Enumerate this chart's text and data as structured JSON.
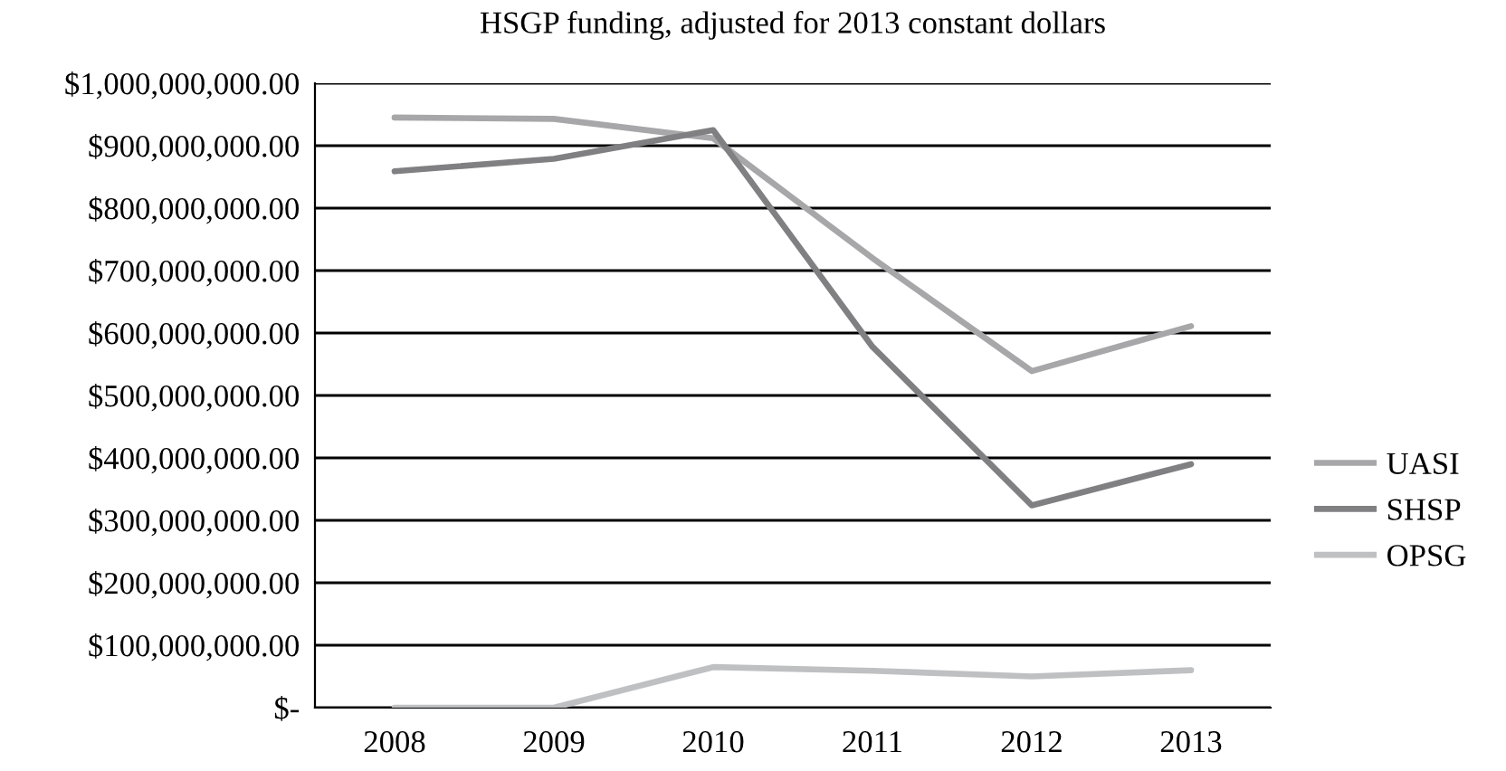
{
  "chart_data": {
    "type": "line",
    "title": "HSGP funding, adjusted for 2013 constant dollars",
    "categories": [
      "2008",
      "2009",
      "2010",
      "2011",
      "2012",
      "2013"
    ],
    "series": [
      {
        "name": "UASI",
        "color": "#a7a7a9",
        "values": [
          945000000,
          943000000,
          912000000,
          720000000,
          539000000,
          611000000
        ]
      },
      {
        "name": "SHSP",
        "color": "#808083",
        "values": [
          859000000,
          879000000,
          925000000,
          578000000,
          324000000,
          390000000
        ]
      },
      {
        "name": "OPSG",
        "color": "#bfc0c2",
        "values": [
          0,
          0,
          65000000,
          59000000,
          50000000,
          60000000
        ]
      }
    ],
    "ylim": [
      0,
      1000000000
    ],
    "yticks": [
      {
        "value": 0,
        "label": "$-"
      },
      {
        "value": 100000000,
        "label": "$100,000,000.00"
      },
      {
        "value": 200000000,
        "label": "$200,000,000.00"
      },
      {
        "value": 300000000,
        "label": "$300,000,000.00"
      },
      {
        "value": 400000000,
        "label": "$400,000,000.00"
      },
      {
        "value": 500000000,
        "label": "$500,000,000.00"
      },
      {
        "value": 600000000,
        "label": "$600,000,000.00"
      },
      {
        "value": 700000000,
        "label": "$700,000,000.00"
      },
      {
        "value": 800000000,
        "label": "$800,000,000.00"
      },
      {
        "value": 900000000,
        "label": "$900,000,000.00"
      },
      {
        "value": 1000000000,
        "label": "$1,000,000,000.00"
      }
    ],
    "grid": "y",
    "legend": "right",
    "marker": "none",
    "line_style": "solid"
  }
}
